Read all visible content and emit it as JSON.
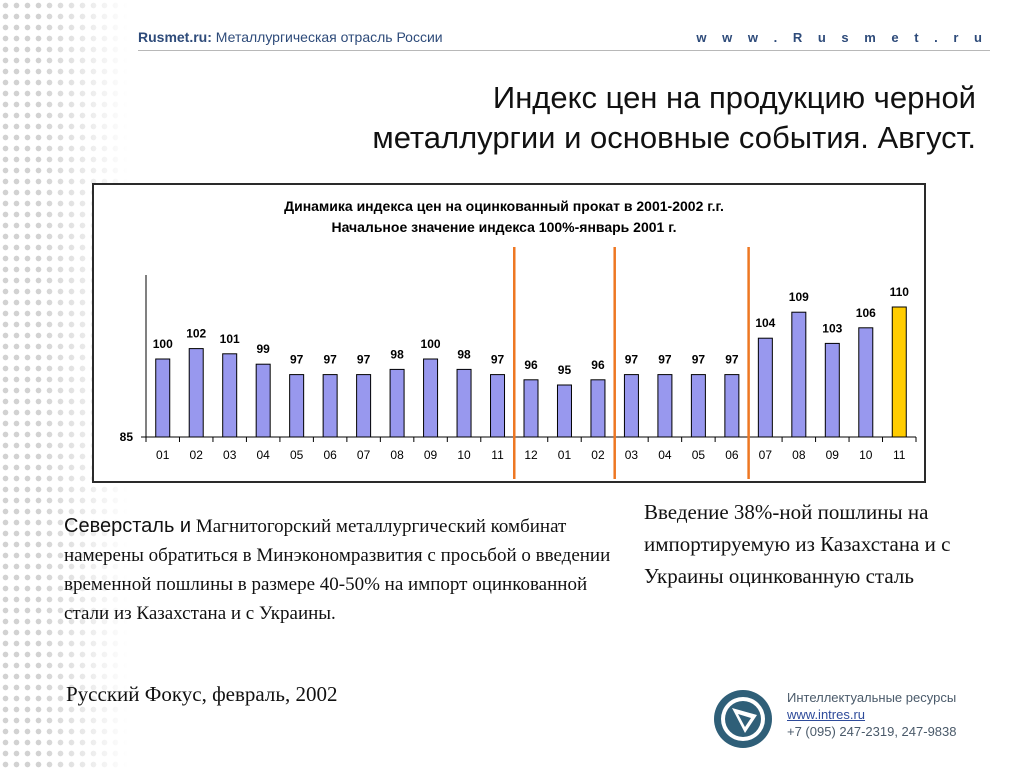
{
  "header": {
    "brand": "Rusmet.ru:",
    "tagline": "Металлургическая отрасль России",
    "url": "w w w . R u s m e t . r u"
  },
  "slide_title": {
    "line1": "Индекс цен на продукцию черной",
    "line2": "металлургии и основные события. Август."
  },
  "left_text": {
    "company": "Северсталь и",
    "body": "Магнитогорский металлургический комбинат намерены обратиться в Минэкономразвития с просьбой о введении временной пошлины в размере 40-50% на импорт оцинкованной стали из Казахстана и с Украины.",
    "source": "Русский Фокус,  февраль, 2002"
  },
  "right_text": "Введение 38%-ной пошлины на импортируемую из Казахстана и с Украины оцинкованную сталь",
  "footer": {
    "org": "Интеллектуальные ресурсы",
    "site": "www.intres.ru",
    "phone": "+7 (095) 247-2319, 247-9838"
  },
  "colors": {
    "bar": "#9898ee",
    "bar_highlight": "#ffcc00",
    "event_line": "#ee7722",
    "text_accent": "#2e4b7a"
  },
  "chart_data": {
    "type": "bar",
    "title_line1": "Динамика индекса цен на оцинкованный прокат в 2001-2002 г.г.",
    "title_line2": "Начальное значение индекса 100%-январь 2001 г.",
    "categories": [
      "01",
      "02",
      "03",
      "04",
      "05",
      "06",
      "07",
      "08",
      "09",
      "10",
      "11",
      "12",
      "01",
      "02",
      "03",
      "04",
      "05",
      "06",
      "07",
      "08",
      "09",
      "10",
      "11"
    ],
    "values": [
      100,
      102,
      101,
      99,
      97,
      97,
      97,
      98,
      100,
      98,
      97,
      96,
      95,
      96,
      97,
      97,
      97,
      97,
      104,
      109,
      103,
      106,
      110
    ],
    "highlight_index": 22,
    "y_min_label": "85",
    "ylim": [
      85,
      115
    ],
    "event_lines_after_index": [
      10.5,
      13.5,
      17.5
    ],
    "grid": false,
    "legend": "none"
  }
}
